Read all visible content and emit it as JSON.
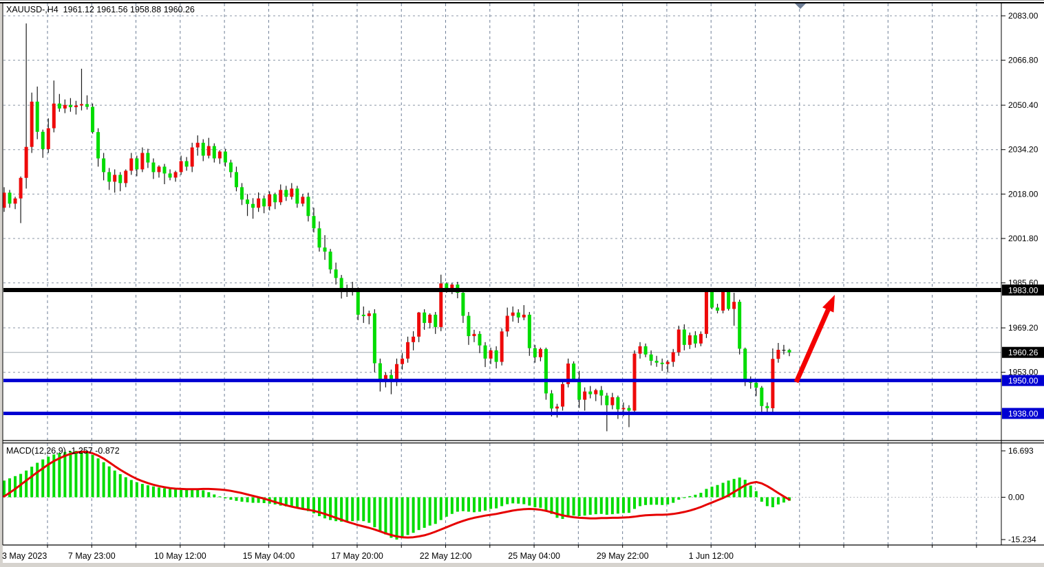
{
  "header": {
    "symbol_period": "XAUUSD-,H4",
    "open": "1961.12",
    "high": "1961.56",
    "low": "1958.88",
    "close": "1960.26"
  },
  "indicator_label": {
    "name": "MACD(12,26,9)",
    "macd_value": "-1.257",
    "signal_value": "-0.872"
  },
  "price_axis": {
    "ticks": [
      "2083.00",
      "2066.80",
      "2050.40",
      "2034.20",
      "2018.00",
      "2001.80",
      "1985.60",
      "1969.20",
      "1953.00"
    ],
    "tick_values": [
      2083.0,
      2066.8,
      2050.4,
      2034.2,
      2018.0,
      2001.8,
      1985.6,
      1969.2,
      1953.0
    ],
    "badges": [
      {
        "text": "1983.00",
        "price": 1983.0,
        "bg": "#000000",
        "fg": "#ffffff"
      },
      {
        "text": "1960.26",
        "price": 1960.26,
        "bg": "#000000",
        "fg": "#ffffff"
      },
      {
        "text": "1950.00",
        "price": 1950.0,
        "bg": "#0000d2",
        "fg": "#ffffff"
      },
      {
        "text": "1938.00",
        "price": 1938.0,
        "bg": "#0000d2",
        "fg": "#ffffff"
      }
    ]
  },
  "macd_axis": {
    "ticks": [
      {
        "text": "16.693",
        "value": 16.693
      },
      {
        "text": "0.00",
        "value": 0.0
      },
      {
        "text": "-15.234",
        "value": -15.234
      }
    ]
  },
  "time_axis": {
    "labels": [
      "3 May 2023",
      "7 May 23:00",
      "10 May 12:00",
      "15 May 04:00",
      "17 May 20:00",
      "22 May 12:00",
      "25 May 04:00",
      "29 May 22:00",
      "1 Jun 12:00"
    ]
  },
  "levels": [
    {
      "label": "1983.00",
      "price": 1983.0,
      "color": "#000000",
      "width": 6
    },
    {
      "label": "1950.00",
      "price": 1950.0,
      "color": "#0000d2",
      "width": 5
    },
    {
      "label": "1938.00",
      "price": 1938.0,
      "color": "#0000d2",
      "width": 5
    }
  ],
  "current_price": 1960.26,
  "colors": {
    "bull_candle": "#ee0a0a",
    "bear_candle": "#00dc00",
    "wick": "#1a1a1a",
    "grid": "#6e7e96",
    "hgrid": "#8894a4",
    "macd_zero": "#b8bcc2",
    "histogram": "#00dc00",
    "signal": "#e60000",
    "arrow": "#f40000",
    "current_price_line": "#a0a8b0",
    "background": "#ffffff",
    "axis_text": "#000000"
  },
  "chart_data": {
    "type": "candlestick",
    "title": "XAUUSD-,H4 gold 4-hour chart with MACD, horizontal support/resistance lines and bullish arrow annotation",
    "symbol": "XAUUSD-",
    "timeframe": "H4",
    "current_ohlc": {
      "open": 1961.12,
      "high": 1961.56,
      "low": 1958.88,
      "close": 1960.26
    },
    "price_range_visible": [
      1928.5,
      2087.5
    ],
    "x_range": [
      "3 May 2023 00:00",
      "5 Jun 2023"
    ],
    "grid": true,
    "legend_position": "none",
    "candles_ohlc": [
      [
        2013.0,
        2020.5,
        2011.5,
        2018.5
      ],
      [
        2018.5,
        2019.5,
        2013.0,
        2014.5
      ],
      [
        2014.5,
        2017.0,
        2012.5,
        2016.4
      ],
      [
        2016.4,
        2024.4,
        2007.4,
        2023.9
      ],
      [
        2023.9,
        2080.2,
        2020.0,
        2035.2
      ],
      [
        2035.2,
        2055.0,
        2033.0,
        2051.7
      ],
      [
        2051.7,
        2057.2,
        2038.0,
        2040.7
      ],
      [
        2040.7,
        2041.5,
        2031.2,
        2034.4
      ],
      [
        2034.4,
        2045.6,
        2033.0,
        2042.0
      ],
      [
        2042.0,
        2059.4,
        2040.5,
        2051.0
      ],
      [
        2051.0,
        2054.5,
        2048.0,
        2049.2
      ],
      [
        2049.2,
        2052.5,
        2047.5,
        2050.5
      ],
      [
        2050.5,
        2053.0,
        2048.0,
        2049.7
      ],
      [
        2049.7,
        2052.0,
        2047.0,
        2050.3
      ],
      [
        2050.3,
        2063.7,
        2048.5,
        2050.8
      ],
      [
        2050.8,
        2054.0,
        2048.8,
        2049.8
      ],
      [
        2049.8,
        2051.0,
        2040.0,
        2040.6
      ],
      [
        2040.6,
        2042.0,
        2028.0,
        2031.0
      ],
      [
        2031.0,
        2033.0,
        2023.0,
        2026.0
      ],
      [
        2026.0,
        2027.5,
        2019.5,
        2022.5
      ],
      [
        2022.5,
        2027.0,
        2018.5,
        2025.0
      ],
      [
        2025.0,
        2026.0,
        2019.0,
        2022.0
      ],
      [
        2022.0,
        2027.0,
        2020.5,
        2026.5
      ],
      [
        2026.5,
        2033.0,
        2025.0,
        2031.0
      ],
      [
        2031.0,
        2032.0,
        2024.5,
        2027.0
      ],
      [
        2027.0,
        2035.0,
        2026.0,
        2033.0
      ],
      [
        2033.0,
        2034.5,
        2027.5,
        2029.5
      ],
      [
        2029.5,
        2031.0,
        2023.5,
        2026.0
      ],
      [
        2026.0,
        2028.5,
        2024.0,
        2028.0
      ],
      [
        2028.0,
        2029.0,
        2021.6,
        2025.5
      ],
      [
        2025.5,
        2027.0,
        2023.0,
        2024.0
      ],
      [
        2024.0,
        2026.5,
        2022.5,
        2026.0
      ],
      [
        2026.0,
        2032.0,
        2025.0,
        2030.0
      ],
      [
        2030.0,
        2031.5,
        2026.5,
        2028.0
      ],
      [
        2028.0,
        2036.7,
        2026.0,
        2035.0
      ],
      [
        2035.0,
        2039.4,
        2032.0,
        2036.7
      ],
      [
        2036.7,
        2038.0,
        2030.0,
        2032.0
      ],
      [
        2032.0,
        2038.5,
        2031.0,
        2035.5
      ],
      [
        2035.5,
        2036.5,
        2029.5,
        2031.0
      ],
      [
        2031.0,
        2034.0,
        2029.0,
        2033.5
      ],
      [
        2033.5,
        2034.5,
        2028.0,
        2029.5
      ],
      [
        2029.5,
        2030.5,
        2024.0,
        2026.0
      ],
      [
        2026.0,
        2028.0,
        2019.0,
        2020.5
      ],
      [
        2020.5,
        2022.0,
        2014.0,
        2016.0
      ],
      [
        2016.0,
        2018.0,
        2010.0,
        2014.4
      ],
      [
        2014.4,
        2016.5,
        2009.0,
        2013.0
      ],
      [
        2013.0,
        2018.6,
        2011.5,
        2016.4
      ],
      [
        2016.4,
        2017.5,
        2011.0,
        2013.5
      ],
      [
        2013.5,
        2019.0,
        2012.0,
        2017.9
      ],
      [
        2017.9,
        2018.5,
        2012.5,
        2015.0
      ],
      [
        2015.0,
        2021.5,
        2014.0,
        2019.5
      ],
      [
        2019.5,
        2021.0,
        2015.5,
        2017.0
      ],
      [
        2017.0,
        2022.0,
        2016.0,
        2020.0
      ],
      [
        2020.0,
        2021.0,
        2013.0,
        2014.5
      ],
      [
        2014.5,
        2018.0,
        2013.5,
        2017.0
      ],
      [
        2017.0,
        2018.5,
        2008.0,
        2010.0
      ],
      [
        2010.0,
        2013.0,
        2004.0,
        2005.5
      ],
      [
        2005.5,
        2008.0,
        1997.0,
        1998.5
      ],
      [
        1998.5,
        2003.0,
        1994.0,
        1997.0
      ],
      [
        1997.0,
        1998.0,
        1989.0,
        1990.5
      ],
      [
        1990.5,
        1993.0,
        1985.0,
        1987.4
      ],
      [
        1987.4,
        1988.5,
        1979.9,
        1982.4
      ],
      [
        1982.4,
        1985.0,
        1980.5,
        1983.4
      ],
      [
        1983.4,
        1986.0,
        1981.0,
        1982.6
      ],
      [
        1982.6,
        1984.0,
        1972.0,
        1974.0
      ],
      [
        1974.0,
        1977.0,
        1971.0,
        1973.5
      ],
      [
        1973.5,
        1975.5,
        1970.5,
        1974.5
      ],
      [
        1974.5,
        1976.0,
        1953.0,
        1956.3
      ],
      [
        1956.3,
        1958.0,
        1946.0,
        1950.5
      ],
      [
        1950.5,
        1953.0,
        1947.5,
        1952.0
      ],
      [
        1952.0,
        1954.0,
        1945.0,
        1949.7
      ],
      [
        1949.7,
        1958.0,
        1948.0,
        1956.0
      ],
      [
        1956.0,
        1960.0,
        1954.0,
        1958.0
      ],
      [
        1958.0,
        1966.0,
        1956.5,
        1964.0
      ],
      [
        1964.0,
        1968.0,
        1961.0,
        1966.0
      ],
      [
        1966.0,
        1975.0,
        1964.0,
        1974.8
      ],
      [
        1974.8,
        1976.0,
        1968.5,
        1971.0
      ],
      [
        1971.0,
        1974.5,
        1969.0,
        1974.0
      ],
      [
        1974.0,
        1975.0,
        1967.0,
        1969.5
      ],
      [
        1969.5,
        1988.6,
        1968.0,
        1985.4
      ],
      [
        1985.4,
        1985.8,
        1982.0,
        1983.2
      ],
      [
        1983.2,
        1985.6,
        1981.5,
        1985.0
      ],
      [
        1985.0,
        1986.0,
        1980.0,
        1982.0
      ],
      [
        1982.0,
        1983.0,
        1971.0,
        1973.6
      ],
      [
        1973.6,
        1975.0,
        1963.0,
        1966.2
      ],
      [
        1966.2,
        1968.5,
        1964.0,
        1967.0
      ],
      [
        1967.0,
        1968.0,
        1960.0,
        1962.8
      ],
      [
        1962.8,
        1964.0,
        1954.9,
        1958.0
      ],
      [
        1958.0,
        1962.0,
        1956.0,
        1961.0
      ],
      [
        1961.0,
        1962.5,
        1954.4,
        1956.8
      ],
      [
        1956.8,
        1969.0,
        1955.5,
        1967.9
      ],
      [
        1967.9,
        1976.6,
        1966.0,
        1973.6
      ],
      [
        1973.6,
        1977.0,
        1971.5,
        1974.8
      ],
      [
        1974.8,
        1976.0,
        1971.0,
        1973.0
      ],
      [
        1973.0,
        1977.5,
        1972.0,
        1974.0
      ],
      [
        1974.0,
        1975.0,
        1959.0,
        1961.8
      ],
      [
        1961.8,
        1963.0,
        1956.5,
        1958.5
      ],
      [
        1958.5,
        1962.0,
        1957.0,
        1961.5
      ],
      [
        1961.5,
        1962.0,
        1943.0,
        1945.3
      ],
      [
        1945.3,
        1946.5,
        1936.9,
        1939.8
      ],
      [
        1939.8,
        1941.5,
        1936.5,
        1940.5
      ],
      [
        1940.5,
        1950.0,
        1939.0,
        1948.7
      ],
      [
        1948.7,
        1958.0,
        1947.5,
        1956.2
      ],
      [
        1956.2,
        1957.0,
        1949.5,
        1950.5
      ],
      [
        1950.5,
        1953.5,
        1940.0,
        1943.0
      ],
      [
        1943.0,
        1947.5,
        1939.0,
        1946.0
      ],
      [
        1946.0,
        1948.0,
        1943.5,
        1945.0
      ],
      [
        1945.0,
        1947.0,
        1942.5,
        1946.5
      ],
      [
        1946.5,
        1948.0,
        1941.0,
        1944.5
      ],
      [
        1944.5,
        1945.5,
        1931.5,
        1941.0
      ],
      [
        1941.0,
        1945.5,
        1939.5,
        1943.9
      ],
      [
        1943.9,
        1944.5,
        1936.0,
        1939.5
      ],
      [
        1939.5,
        1942.0,
        1937.0,
        1940.0
      ],
      [
        1940.0,
        1941.0,
        1933.0,
        1939.0
      ],
      [
        1939.0,
        1961.0,
        1938.5,
        1959.8
      ],
      [
        1959.8,
        1964.0,
        1958.0,
        1962.5
      ],
      [
        1962.5,
        1963.5,
        1958.5,
        1959.5
      ],
      [
        1959.5,
        1961.0,
        1955.5,
        1957.2
      ],
      [
        1957.2,
        1959.0,
        1955.0,
        1956.5
      ],
      [
        1956.5,
        1958.0,
        1953.5,
        1956.0
      ],
      [
        1956.0,
        1957.5,
        1953.0,
        1956.8
      ],
      [
        1956.8,
        1961.5,
        1955.0,
        1960.3
      ],
      [
        1960.3,
        1970.0,
        1959.0,
        1968.6
      ],
      [
        1968.6,
        1970.5,
        1961.0,
        1963.0
      ],
      [
        1963.0,
        1967.5,
        1961.5,
        1966.5
      ],
      [
        1966.5,
        1968.0,
        1962.0,
        1963.5
      ],
      [
        1963.5,
        1967.9,
        1962.5,
        1967.0
      ],
      [
        1967.0,
        1983.3,
        1965.5,
        1982.5
      ],
      [
        1982.5,
        1983.2,
        1976.0,
        1976.6
      ],
      [
        1976.6,
        1978.0,
        1974.5,
        1975.5
      ],
      [
        1975.5,
        1982.8,
        1974.5,
        1982.4
      ],
      [
        1982.4,
        1983.4,
        1975.5,
        1976.1
      ],
      [
        1976.1,
        1982.0,
        1970.0,
        1978.7
      ],
      [
        1978.7,
        1979.5,
        1959.5,
        1961.6
      ],
      [
        1961.6,
        1962.0,
        1948.0,
        1950.4
      ],
      [
        1950.4,
        1951.5,
        1947.0,
        1949.2
      ],
      [
        1949.2,
        1950.0,
        1944.3,
        1947.4
      ],
      [
        1947.4,
        1948.0,
        1938.5,
        1940.7
      ],
      [
        1940.7,
        1942.0,
        1937.5,
        1939.9
      ],
      [
        1939.9,
        1961.7,
        1938.5,
        1957.9
      ],
      [
        1957.9,
        1963.7,
        1956.5,
        1961.2
      ],
      [
        1961.2,
        1963.0,
        1959.5,
        1961.1
      ],
      [
        1961.12,
        1961.56,
        1958.88,
        1960.26
      ]
    ],
    "macd": {
      "params": "12,26,9",
      "range": [
        -15.234,
        16.693
      ],
      "last_macd": -1.257,
      "last_signal": -0.872,
      "histogram": [
        6.0,
        6.8,
        7.6,
        8.4,
        9.6,
        11.0,
        12.4,
        13.6,
        14.6,
        15.4,
        15.9,
        16.3,
        16.5,
        16.693,
        16.5,
        16.0,
        15.2,
        14.0,
        12.6,
        11.1,
        9.6,
        8.3,
        7.2,
        6.2,
        5.4,
        4.8,
        4.3,
        3.9,
        3.5,
        3.2,
        3.0,
        2.8,
        2.6,
        2.7,
        2.9,
        3.1,
        2.5,
        1.8,
        1.0,
        0.3,
        -0.4,
        -0.9,
        -1.3,
        -1.6,
        -1.8,
        -2.0,
        -2.0,
        -2.1,
        -2.3,
        -2.6,
        -3.0,
        -3.3,
        -3.6,
        -4.0,
        -4.4,
        -5.0,
        -5.8,
        -6.8,
        -7.6,
        -8.2,
        -8.6,
        -8.8,
        -8.8,
        -8.6,
        -8.4,
        -8.6,
        -9.2,
        -10.8,
        -12.2,
        -13.4,
        -14.6,
        -15.234,
        -14.6,
        -13.6,
        -12.8,
        -11.8,
        -11.0,
        -10.2,
        -9.6,
        -8.2,
        -7.0,
        -6.0,
        -5.2,
        -5.0,
        -5.2,
        -5.4,
        -5.2,
        -4.8,
        -4.2,
        -4.0,
        -3.2,
        -2.5,
        -2.2,
        -2.3,
        -2.5,
        -3.0,
        -3.6,
        -3.8,
        -4.8,
        -6.0,
        -7.4,
        -7.8,
        -7.0,
        -6.6,
        -6.8,
        -6.6,
        -6.3,
        -6.1,
        -6.0,
        -6.3,
        -6.1,
        -5.9,
        -5.7,
        -5.6,
        -4.2,
        -3.2,
        -2.8,
        -2.7,
        -2.7,
        -2.8,
        -2.6,
        -2.0,
        -0.9,
        -0.3,
        0.4,
        0.9,
        1.6,
        3.0,
        3.8,
        4.4,
        5.2,
        6.0,
        6.6,
        7.1,
        6.3,
        4.2,
        2.2,
        -1.6,
        -3.2,
        -3.6,
        -2.6,
        -1.9,
        -1.257
      ],
      "signal": [
        0.3,
        1.6,
        3.0,
        4.5,
        6.0,
        7.5,
        9.0,
        10.4,
        11.8,
        13.0,
        14.0,
        14.9,
        15.6,
        16.1,
        16.4,
        16.3,
        15.8,
        15.0,
        13.9,
        12.6,
        11.2,
        9.9,
        8.7,
        7.6,
        6.6,
        5.8,
        5.1,
        4.5,
        4.0,
        3.6,
        3.3,
        3.1,
        3.0,
        2.9,
        2.9,
        2.9,
        3.0,
        3.0,
        2.9,
        2.8,
        2.6,
        2.3,
        1.9,
        1.5,
        1.0,
        0.5,
        0.0,
        -0.5,
        -1.1,
        -1.7,
        -2.3,
        -2.9,
        -3.4,
        -3.8,
        -4.2,
        -4.5,
        -4.9,
        -5.4,
        -6.0,
        -6.7,
        -7.4,
        -8.1,
        -8.8,
        -9.4,
        -10.0,
        -10.5,
        -11.0,
        -11.6,
        -12.3,
        -13.0,
        -13.6,
        -14.1,
        -14.4,
        -14.5,
        -14.4,
        -14.1,
        -13.7,
        -13.1,
        -12.4,
        -11.6,
        -10.8,
        -10.0,
        -9.2,
        -8.5,
        -7.9,
        -7.4,
        -7.0,
        -6.6,
        -6.3,
        -6.0,
        -5.6,
        -5.2,
        -4.8,
        -4.5,
        -4.3,
        -4.2,
        -4.3,
        -4.5,
        -4.9,
        -5.4,
        -6.0,
        -6.5,
        -6.9,
        -7.2,
        -7.4,
        -7.5,
        -7.6,
        -7.6,
        -7.5,
        -7.5,
        -7.4,
        -7.4,
        -7.3,
        -7.2,
        -7.0,
        -6.7,
        -6.5,
        -6.4,
        -6.3,
        -6.3,
        -6.2,
        -6.0,
        -5.7,
        -5.3,
        -4.8,
        -4.2,
        -3.5,
        -2.7,
        -1.9,
        -1.1,
        -0.3,
        0.7,
        1.9,
        3.1,
        4.3,
        5.1,
        5.5,
        5.0,
        4.0,
        2.8,
        1.5,
        0.3,
        -0.872
      ]
    },
    "annotations": [
      {
        "type": "arrow",
        "direction": "up-right",
        "from_price": 1950.0,
        "to_price": 1981.5,
        "color": "#f40000",
        "meaning": "projected bullish move from 1950 support toward 1983 resistance"
      }
    ]
  }
}
